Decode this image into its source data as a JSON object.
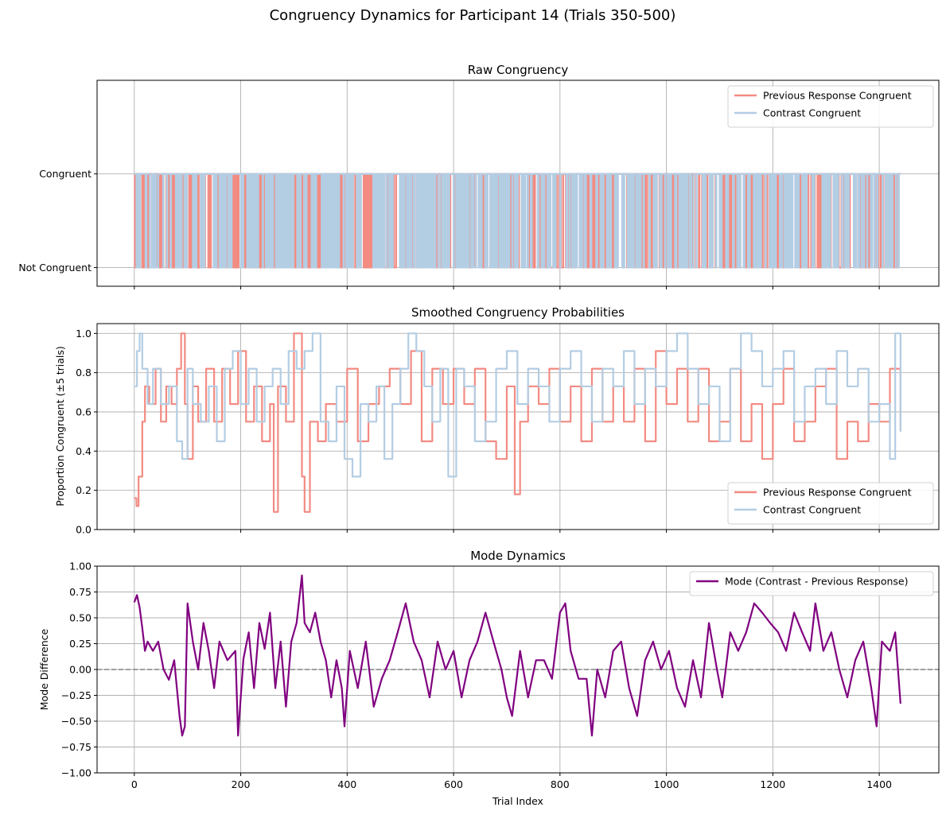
{
  "figure": {
    "suptitle": "Congruency Dynamics for Participant 14 (Trials 350-500)"
  },
  "colors": {
    "previous_response": "#f28b82",
    "contrast": "#b3cde3",
    "mode": "#800080",
    "zero_line": "#808080",
    "grid": "#b0b0b0"
  },
  "chart_data": [
    {
      "type": "line",
      "title": "Raw Congruency",
      "xlabel": "",
      "ylabel": "",
      "xlim": [
        -70,
        1512
      ],
      "ylim": [
        -0.2,
        2.0
      ],
      "grid": true,
      "legend_position": "upper right",
      "yticks": [
        {
          "value": 0,
          "label": "Not Congruent"
        },
        {
          "value": 1,
          "label": "Congruent"
        }
      ],
      "series": [
        {
          "name": "Previous Response Congruent",
          "color": "#f28b82",
          "kind": "binary",
          "n": 1441,
          "seed": 7,
          "p": 0.62
        },
        {
          "name": "Contrast Congruent",
          "color": "#b3cde3",
          "kind": "binary",
          "n": 1441,
          "seed": 11,
          "p": 0.7
        }
      ]
    },
    {
      "type": "line",
      "title": "Smoothed Congruency Probabilities",
      "xlabel": "",
      "ylabel": "Proportion Congruent (±5 trials)",
      "xlim": [
        -70,
        1512
      ],
      "ylim": [
        0.0,
        1.05
      ],
      "grid": true,
      "legend_position": "lower right",
      "yticks": [
        {
          "value": 0.0,
          "label": "0.0"
        },
        {
          "value": 0.2,
          "label": "0.2"
        },
        {
          "value": 0.4,
          "label": "0.4"
        },
        {
          "value": 0.6,
          "label": "0.6"
        },
        {
          "value": 0.8,
          "label": "0.8"
        },
        {
          "value": 1.0,
          "label": "1.0"
        }
      ],
      "series": [
        {
          "name": "Previous Response Congruent",
          "color": "#f28b82",
          "x": [
            0,
            4,
            8,
            15,
            20,
            28,
            40,
            50,
            60,
            70,
            80,
            88,
            95,
            100,
            110,
            120,
            135,
            150,
            165,
            180,
            195,
            210,
            225,
            240,
            255,
            262,
            270,
            285,
            300,
            315,
            320,
            330,
            345,
            360,
            380,
            400,
            420,
            440,
            460,
            480,
            500,
            520,
            540,
            560,
            580,
            600,
            620,
            640,
            660,
            680,
            700,
            715,
            725,
            740,
            760,
            780,
            800,
            820,
            840,
            860,
            880,
            900,
            920,
            940,
            960,
            980,
            1000,
            1020,
            1040,
            1060,
            1080,
            1100,
            1120,
            1140,
            1160,
            1180,
            1200,
            1220,
            1240,
            1260,
            1280,
            1300,
            1320,
            1340,
            1360,
            1380,
            1400,
            1420,
            1440
          ],
          "y": [
            0.16,
            0.12,
            0.27,
            0.55,
            0.73,
            0.64,
            0.82,
            0.55,
            0.73,
            0.64,
            0.82,
            1.0,
            0.64,
            0.36,
            0.73,
            0.55,
            0.82,
            0.55,
            0.82,
            0.64,
            0.91,
            0.55,
            0.73,
            0.45,
            0.64,
            0.09,
            0.73,
            0.55,
            1.0,
            0.27,
            0.09,
            0.55,
            0.45,
            0.64,
            0.55,
            0.82,
            0.45,
            0.64,
            0.73,
            0.82,
            0.64,
            0.91,
            0.45,
            0.82,
            0.64,
            0.82,
            0.64,
            0.82,
            0.45,
            0.36,
            0.73,
            0.18,
            0.55,
            0.73,
            0.64,
            0.82,
            0.55,
            0.73,
            0.45,
            0.82,
            0.55,
            0.73,
            0.55,
            0.82,
            0.45,
            0.91,
            0.64,
            0.82,
            0.55,
            0.82,
            0.45,
            0.55,
            0.82,
            0.45,
            0.64,
            0.36,
            0.64,
            0.82,
            0.45,
            0.55,
            0.73,
            0.82,
            0.36,
            0.55,
            0.45,
            0.64,
            0.55,
            0.82,
            0.5
          ]
        },
        {
          "name": "Contrast Congruent",
          "color": "#b3cde3",
          "x": [
            0,
            5,
            10,
            15,
            25,
            35,
            50,
            65,
            80,
            90,
            100,
            110,
            125,
            140,
            155,
            170,
            185,
            200,
            215,
            230,
            245,
            260,
            275,
            290,
            305,
            320,
            335,
            350,
            365,
            380,
            395,
            410,
            425,
            440,
            455,
            470,
            485,
            500,
            515,
            530,
            545,
            560,
            575,
            590,
            605,
            620,
            640,
            660,
            680,
            700,
            720,
            740,
            760,
            780,
            800,
            820,
            840,
            860,
            880,
            900,
            920,
            940,
            960,
            980,
            1000,
            1020,
            1040,
            1060,
            1080,
            1100,
            1120,
            1140,
            1160,
            1180,
            1200,
            1220,
            1240,
            1260,
            1280,
            1300,
            1320,
            1340,
            1360,
            1380,
            1400,
            1420,
            1430,
            1440
          ],
          "y": [
            0.73,
            0.91,
            1.0,
            0.82,
            0.64,
            0.82,
            0.64,
            0.73,
            0.45,
            0.36,
            0.82,
            0.64,
            0.55,
            0.73,
            0.45,
            0.82,
            0.91,
            0.64,
            0.82,
            0.55,
            0.73,
            0.82,
            0.64,
            0.91,
            0.82,
            0.91,
            1.0,
            0.55,
            0.45,
            0.73,
            0.36,
            0.27,
            0.64,
            0.55,
            0.73,
            0.36,
            0.64,
            0.82,
            1.0,
            0.91,
            0.73,
            0.55,
            0.82,
            0.27,
            0.82,
            0.73,
            0.45,
            0.55,
            0.82,
            0.91,
            0.64,
            0.82,
            0.73,
            0.55,
            0.82,
            0.91,
            0.73,
            0.55,
            0.82,
            0.73,
            0.91,
            0.64,
            0.82,
            0.73,
            0.91,
            1.0,
            0.82,
            0.64,
            0.73,
            0.45,
            0.82,
            1.0,
            0.91,
            0.73,
            0.82,
            0.91,
            0.55,
            0.73,
            0.82,
            0.64,
            0.91,
            0.73,
            0.82,
            0.55,
            0.64,
            0.36,
            1.0,
            0.5
          ]
        }
      ]
    },
    {
      "type": "line",
      "title": "Mode Dynamics",
      "xlabel": "Trial Index",
      "ylabel": "Mode Difference",
      "xlim": [
        -70,
        1512
      ],
      "ylim": [
        -1.0,
        1.0
      ],
      "grid": true,
      "legend_position": "upper right",
      "hline": {
        "y": 0.0,
        "style": "dashed",
        "color": "#808080"
      },
      "xticks": [
        0,
        200,
        400,
        600,
        800,
        1000,
        1200,
        1400
      ],
      "yticks": [
        {
          "value": -1.0,
          "label": "−1.00"
        },
        {
          "value": -0.75,
          "label": "−0.75"
        },
        {
          "value": -0.5,
          "label": "−0.50"
        },
        {
          "value": -0.25,
          "label": "−0.25"
        },
        {
          "value": 0.0,
          "label": "0.00"
        },
        {
          "value": 0.25,
          "label": "0.25"
        },
        {
          "value": 0.5,
          "label": "0.50"
        },
        {
          "value": 0.75,
          "label": "0.75"
        },
        {
          "value": 1.0,
          "label": "1.00"
        }
      ],
      "series": [
        {
          "name": "Mode (Contrast - Previous Response)",
          "color": "#800080",
          "x": [
            0,
            5,
            10,
            15,
            20,
            25,
            35,
            45,
            55,
            65,
            75,
            85,
            90,
            95,
            100,
            110,
            120,
            130,
            140,
            150,
            160,
            175,
            190,
            195,
            205,
            215,
            225,
            235,
            245,
            255,
            265,
            275,
            285,
            295,
            305,
            315,
            320,
            330,
            340,
            350,
            360,
            370,
            380,
            390,
            395,
            405,
            420,
            435,
            450,
            465,
            480,
            495,
            510,
            525,
            540,
            555,
            570,
            585,
            600,
            615,
            630,
            645,
            660,
            675,
            690,
            700,
            710,
            725,
            740,
            755,
            770,
            785,
            800,
            810,
            820,
            835,
            850,
            860,
            870,
            885,
            900,
            915,
            930,
            945,
            960,
            975,
            990,
            1005,
            1020,
            1035,
            1050,
            1065,
            1080,
            1095,
            1105,
            1120,
            1135,
            1150,
            1165,
            1180,
            1195,
            1210,
            1225,
            1240,
            1255,
            1270,
            1280,
            1295,
            1310,
            1325,
            1340,
            1355,
            1370,
            1385,
            1395,
            1405,
            1420,
            1430,
            1440
          ],
          "y": [
            0.65,
            0.72,
            0.6,
            0.4,
            0.18,
            0.27,
            0.18,
            0.27,
            0.0,
            -0.1,
            0.09,
            -0.45,
            -0.64,
            -0.55,
            0.64,
            0.27,
            0.0,
            0.45,
            0.18,
            -0.18,
            0.27,
            0.09,
            0.18,
            -0.64,
            0.1,
            0.36,
            -0.18,
            0.45,
            0.2,
            0.55,
            -0.18,
            0.27,
            -0.36,
            0.27,
            0.45,
            0.91,
            0.45,
            0.36,
            0.55,
            0.27,
            0.09,
            -0.27,
            0.09,
            -0.18,
            -0.55,
            0.18,
            -0.18,
            0.27,
            -0.36,
            -0.09,
            0.09,
            0.36,
            0.64,
            0.27,
            0.09,
            -0.27,
            0.27,
            0.0,
            0.18,
            -0.27,
            0.09,
            0.27,
            0.55,
            0.27,
            0.0,
            -0.27,
            -0.45,
            0.18,
            -0.27,
            0.09,
            0.09,
            -0.09,
            0.55,
            0.64,
            0.18,
            -0.09,
            -0.09,
            -0.64,
            0.0,
            -0.27,
            0.18,
            0.27,
            -0.18,
            -0.45,
            0.09,
            0.27,
            0.0,
            0.18,
            -0.18,
            -0.36,
            0.09,
            -0.27,
            0.45,
            0.0,
            -0.27,
            0.36,
            0.18,
            0.36,
            0.64,
            0.55,
            0.45,
            0.36,
            0.18,
            0.55,
            0.36,
            0.18,
            0.64,
            0.18,
            0.36,
            0.0,
            -0.27,
            0.09,
            0.27,
            -0.18,
            -0.55,
            0.27,
            0.18,
            0.36,
            -0.33
          ]
        }
      ]
    }
  ]
}
